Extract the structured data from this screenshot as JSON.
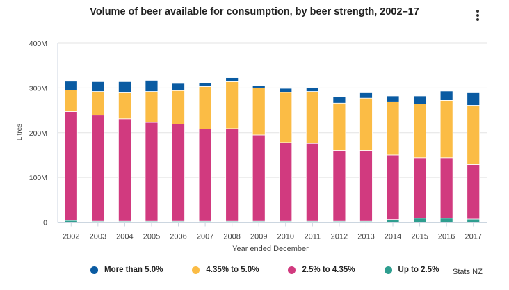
{
  "chart_data": {
    "type": "bar",
    "stacked": true,
    "title": "Volume of beer available for consumption, by beer strength, 2002–17",
    "xlabel": "Year ended December",
    "ylabel": "Litres",
    "ylim": [
      0,
      400000000
    ],
    "yticks": [
      {
        "value": 0,
        "label": "0"
      },
      {
        "value": 100000000,
        "label": "100M"
      },
      {
        "value": 200000000,
        "label": "200M"
      },
      {
        "value": 300000000,
        "label": "300M"
      },
      {
        "value": 400000000,
        "label": "400M"
      }
    ],
    "grid": true,
    "legend_position": "bottom",
    "categories": [
      "2002",
      "2003",
      "2004",
      "2005",
      "2006",
      "2007",
      "2008",
      "2009",
      "2010",
      "2011",
      "2012",
      "2013",
      "2014",
      "2015",
      "2016",
      "2017"
    ],
    "series": [
      {
        "name": "Up to 2.5%",
        "color": "#2e9e8f",
        "values": [
          4,
          2,
          2,
          2,
          2,
          2,
          2,
          2,
          2,
          2,
          2,
          2,
          6,
          9,
          9,
          7
        ]
      },
      {
        "name": "2.5% to 4.35%",
        "color": "#d13a7f",
        "values": [
          243,
          237,
          229,
          221,
          217,
          206,
          207,
          193,
          176,
          174,
          158,
          158,
          144,
          135,
          135,
          122
        ]
      },
      {
        "name": "4.35% to 5.0%",
        "color": "#fbbc45",
        "values": [
          48,
          53,
          58,
          69,
          75,
          95,
          105,
          105,
          112,
          116,
          106,
          117,
          119,
          120,
          128,
          132
        ]
      },
      {
        "name": "More than 5.0%",
        "color": "#0a5ba2",
        "values": [
          20,
          22,
          25,
          25,
          16,
          9,
          9,
          5,
          9,
          8,
          15,
          12,
          13,
          18,
          21,
          28
        ]
      }
    ],
    "value_unit": "million litres",
    "legend_order": [
      "More than 5.0%",
      "4.35% to 5.0%",
      "2.5% to 4.35%",
      "Up to 2.5%"
    ]
  },
  "menu_icon": "kebab-menu-icon",
  "source": "Stats NZ"
}
